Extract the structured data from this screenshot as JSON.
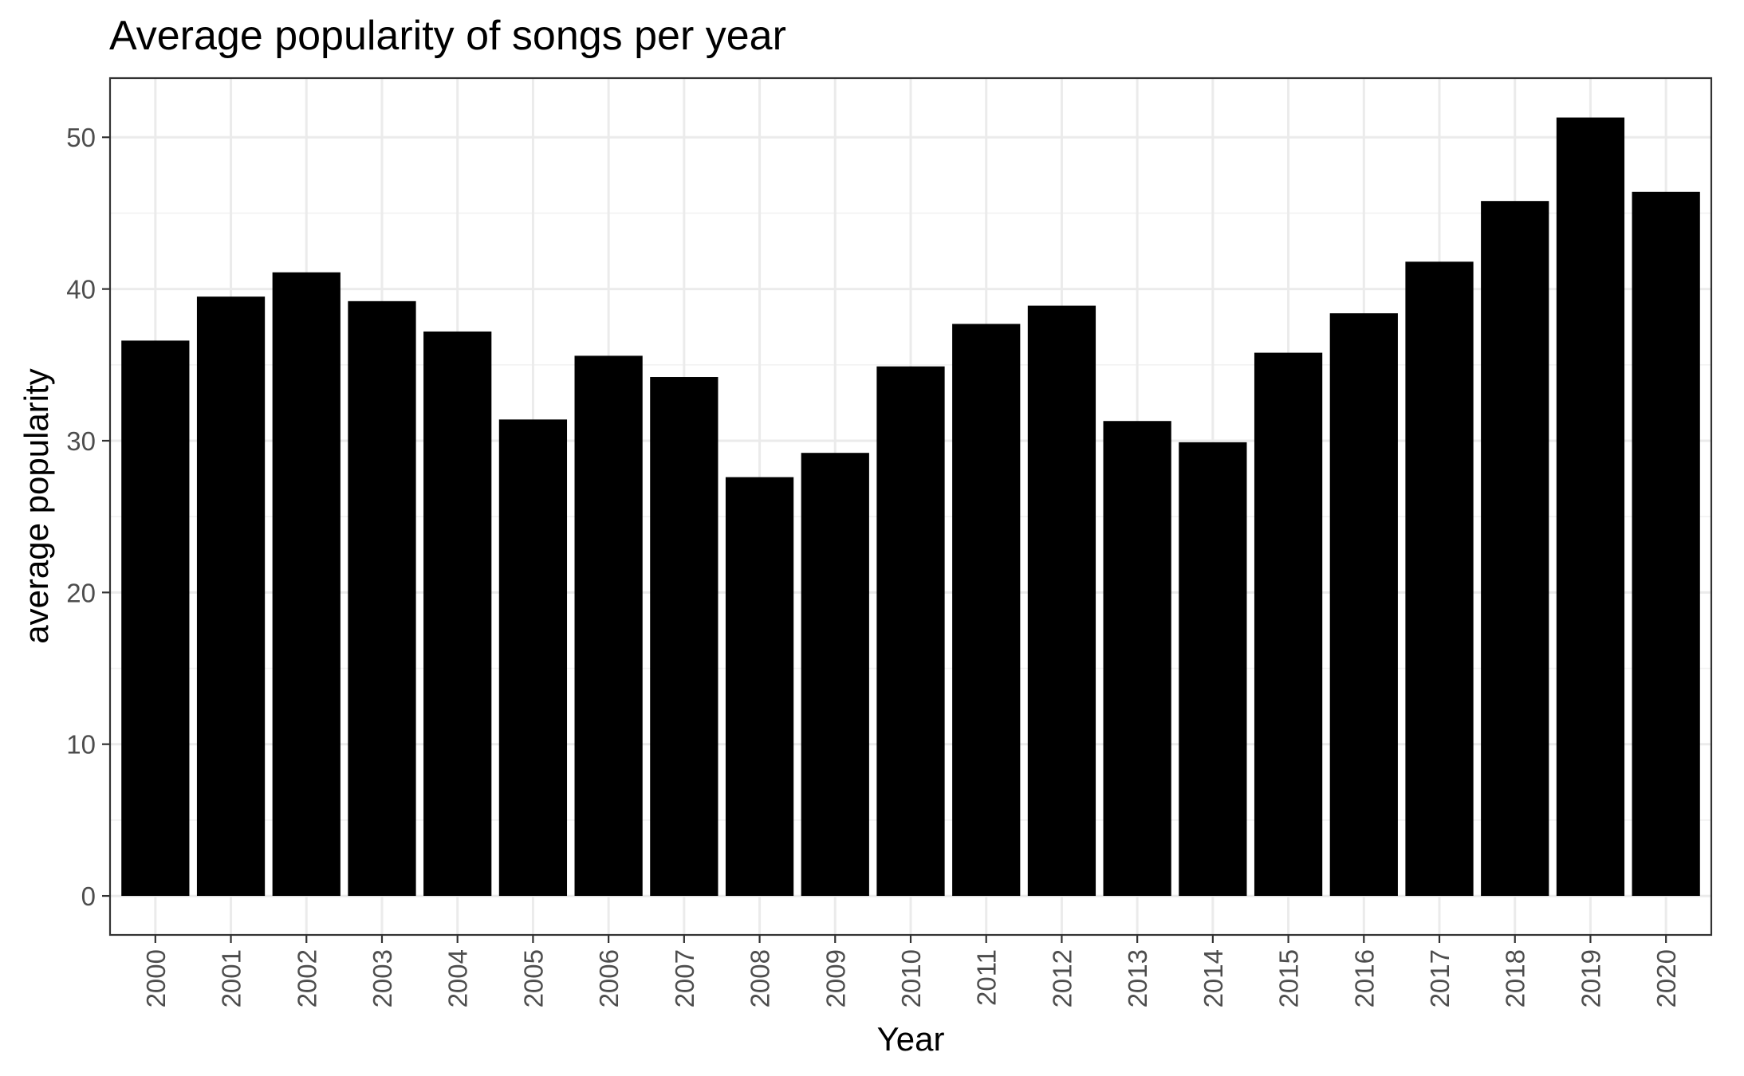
{
  "chart_data": {
    "type": "bar",
    "title": "Average popularity of songs per year",
    "xlabel": "Year",
    "ylabel": "average popularity",
    "categories": [
      "2000",
      "2001",
      "2002",
      "2003",
      "2004",
      "2005",
      "2006",
      "2007",
      "2008",
      "2009",
      "2010",
      "2011",
      "2012",
      "2013",
      "2014",
      "2015",
      "2016",
      "2017",
      "2018",
      "2019",
      "2020"
    ],
    "values": [
      36.6,
      39.5,
      41.1,
      39.2,
      37.2,
      31.4,
      35.6,
      34.2,
      27.6,
      29.2,
      34.9,
      37.7,
      38.9,
      31.3,
      29.9,
      35.8,
      38.4,
      41.8,
      45.8,
      51.3,
      46.4
    ],
    "ylim": [
      -2.57,
      53.9
    ],
    "yticks": [
      0,
      10,
      20,
      30,
      40,
      50
    ],
    "ytick_labels": [
      "0",
      "10",
      "20",
      "30",
      "40",
      "50"
    ],
    "bar_color": "#000000",
    "grid": true,
    "legend": "none"
  }
}
